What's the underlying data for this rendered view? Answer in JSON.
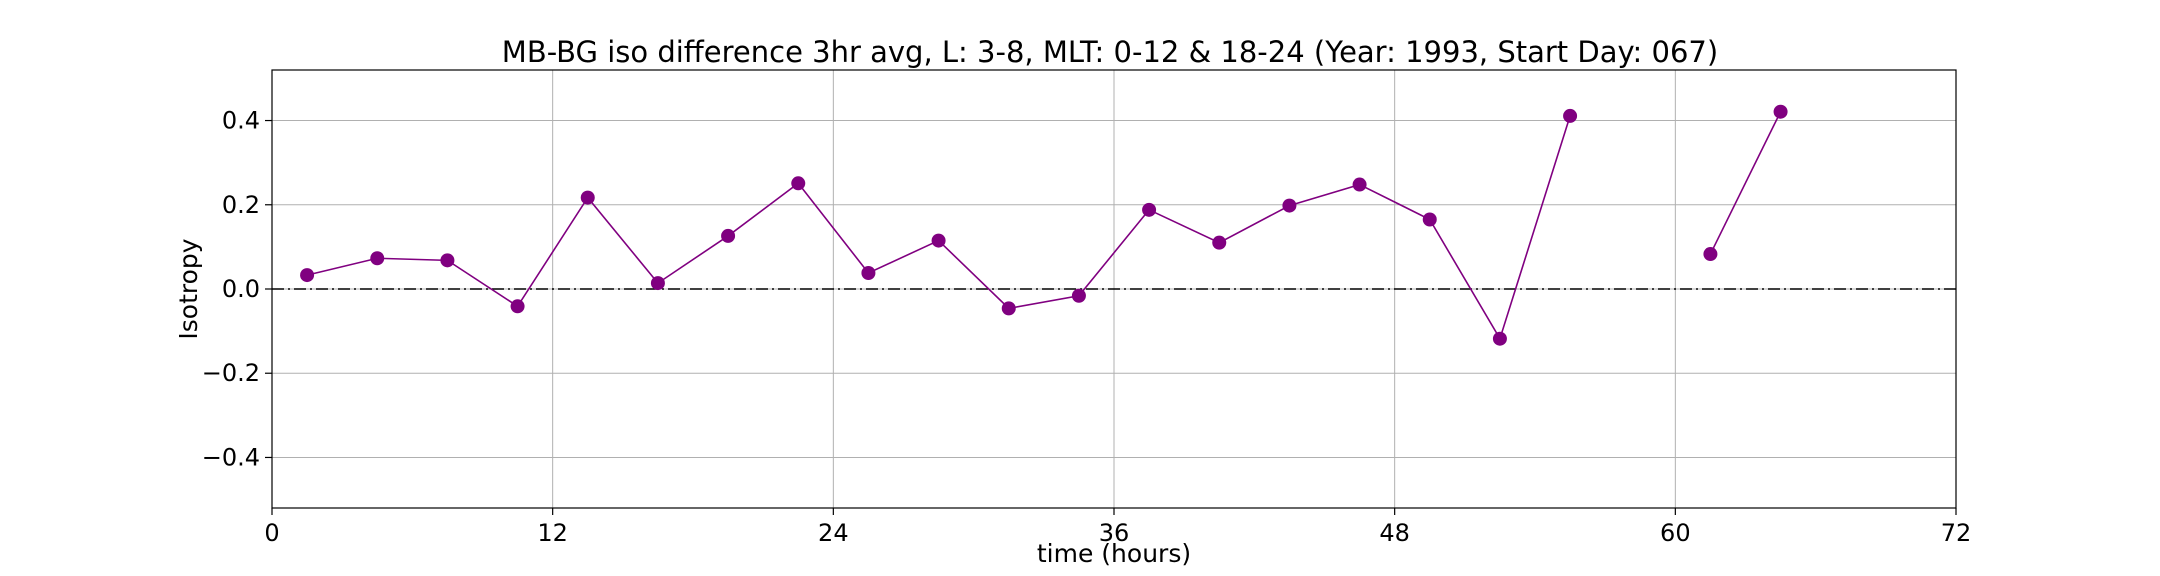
{
  "chart_data": {
    "type": "line",
    "title": "MB-BG iso difference 3hr avg, L: 3-8, MLT: 0-12 & 18-24 (Year: 1993, Start Day: 067)",
    "xlabel": "time (hours)",
    "ylabel": "Isotropy",
    "xlim": [
      0,
      72
    ],
    "ylim": [
      -0.52,
      0.52
    ],
    "xticks": [
      0,
      12,
      24,
      36,
      48,
      60,
      72
    ],
    "xtick_labels": [
      "0",
      "12",
      "24",
      "36",
      "48",
      "60",
      "72"
    ],
    "yticks": [
      -0.4,
      -0.2,
      0.0,
      0.2,
      0.4
    ],
    "ytick_labels": [
      "−0.4",
      "−0.2",
      "0.0",
      "0.2",
      "0.4"
    ],
    "grid": true,
    "reference_line": {
      "y": 0.0,
      "style": "dash-dot",
      "color": "#000000"
    },
    "series": [
      {
        "color": "#800080",
        "x": [
          1.5,
          4.5,
          7.5,
          10.5,
          13.5,
          16.5,
          19.5,
          22.5,
          25.5,
          28.5,
          31.5,
          34.5,
          37.5,
          40.5,
          43.5,
          46.5,
          49.5,
          52.5,
          55.5,
          58.5,
          61.5,
          64.5
        ],
        "y": [
          0.033,
          0.073,
          0.068,
          -0.041,
          0.217,
          0.014,
          0.126,
          0.251,
          0.038,
          0.115,
          -0.046,
          -0.016,
          0.188,
          0.11,
          0.198,
          0.248,
          0.165,
          -0.118,
          0.411,
          null,
          0.083,
          0.421
        ]
      }
    ]
  }
}
